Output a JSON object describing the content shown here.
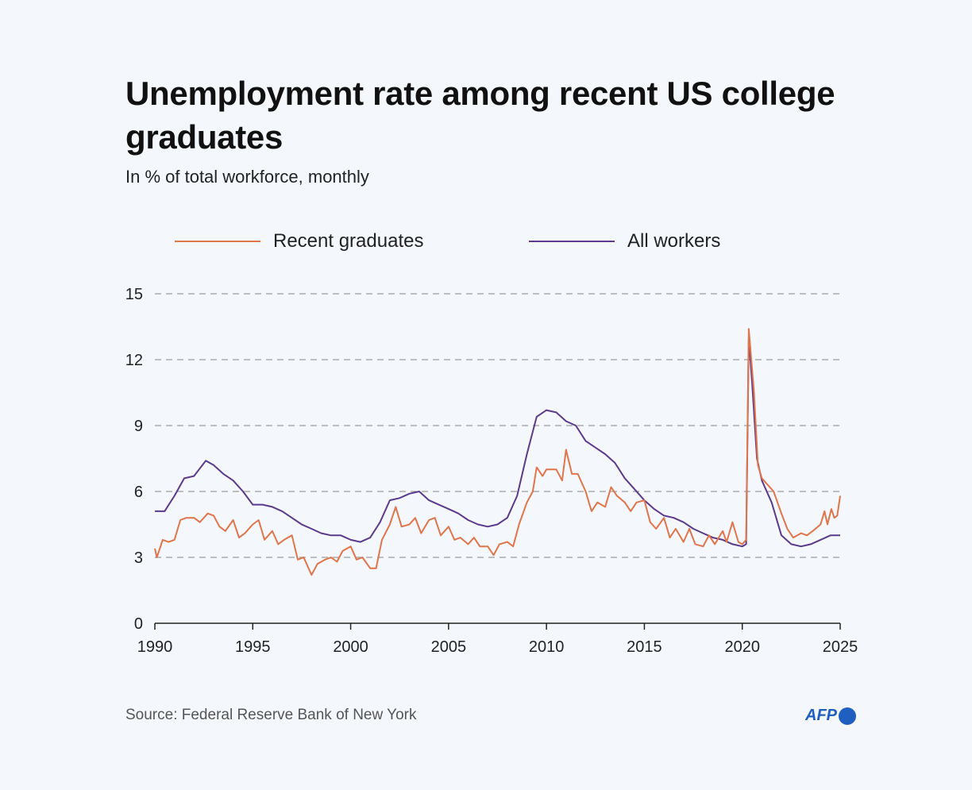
{
  "chart_data": {
    "type": "line",
    "title": "Unemployment rate among recent US college graduates",
    "subtitle": "In % of total workforce, monthly",
    "xlabel": "",
    "ylabel": "",
    "xlim": [
      1990,
      2025
    ],
    "ylim": [
      0,
      15
    ],
    "x_ticks": [
      "1990",
      "1995",
      "2000",
      "2005",
      "2010",
      "2015",
      "2020",
      "2025"
    ],
    "y_ticks": [
      "0",
      "3",
      "6",
      "9",
      "12",
      "15"
    ],
    "grid": "horizontal dashed",
    "legend_placement": "top",
    "series": [
      {
        "name": "Recent graduates",
        "color": "#e0744a",
        "points": [
          [
            1990,
            3.4
          ],
          [
            1990.1,
            3.0
          ],
          [
            1990.4,
            3.8
          ],
          [
            1990.7,
            3.7
          ],
          [
            1991,
            3.8
          ],
          [
            1991.3,
            4.7
          ],
          [
            1991.6,
            4.8
          ],
          [
            1992,
            4.8
          ],
          [
            1992.3,
            4.6
          ],
          [
            1992.7,
            5.0
          ],
          [
            1993,
            4.9
          ],
          [
            1993.3,
            4.4
          ],
          [
            1993.6,
            4.2
          ],
          [
            1994,
            4.7
          ],
          [
            1994.3,
            3.9
          ],
          [
            1994.6,
            4.1
          ],
          [
            1995,
            4.5
          ],
          [
            1995.3,
            4.7
          ],
          [
            1995.6,
            3.8
          ],
          [
            1996,
            4.2
          ],
          [
            1996.3,
            3.6
          ],
          [
            1996.6,
            3.8
          ],
          [
            1997,
            4.0
          ],
          [
            1997.3,
            2.9
          ],
          [
            1997.6,
            3.0
          ],
          [
            1998,
            2.2
          ],
          [
            1998.3,
            2.7
          ],
          [
            1998.7,
            2.9
          ],
          [
            1999,
            3.0
          ],
          [
            1999.3,
            2.8
          ],
          [
            1999.6,
            3.3
          ],
          [
            2000,
            3.5
          ],
          [
            2000.3,
            2.9
          ],
          [
            2000.6,
            3.0
          ],
          [
            2001,
            2.5
          ],
          [
            2001.3,
            2.5
          ],
          [
            2001.6,
            3.8
          ],
          [
            2002,
            4.5
          ],
          [
            2002.3,
            5.3
          ],
          [
            2002.6,
            4.4
          ],
          [
            2003,
            4.5
          ],
          [
            2003.3,
            4.8
          ],
          [
            2003.6,
            4.1
          ],
          [
            2004,
            4.7
          ],
          [
            2004.3,
            4.8
          ],
          [
            2004.6,
            4.0
          ],
          [
            2005,
            4.4
          ],
          [
            2005.3,
            3.8
          ],
          [
            2005.6,
            3.9
          ],
          [
            2006,
            3.6
          ],
          [
            2006.3,
            3.9
          ],
          [
            2006.6,
            3.5
          ],
          [
            2007,
            3.5
          ],
          [
            2007.3,
            3.1
          ],
          [
            2007.6,
            3.6
          ],
          [
            2008,
            3.7
          ],
          [
            2008.3,
            3.5
          ],
          [
            2008.6,
            4.5
          ],
          [
            2009,
            5.5
          ],
          [
            2009.3,
            6.0
          ],
          [
            2009.5,
            7.1
          ],
          [
            2009.8,
            6.7
          ],
          [
            2010,
            7.0
          ],
          [
            2010.5,
            7.0
          ],
          [
            2010.8,
            6.5
          ],
          [
            2011,
            7.9
          ],
          [
            2011.3,
            6.8
          ],
          [
            2011.6,
            6.8
          ],
          [
            2012,
            6.0
          ],
          [
            2012.3,
            5.1
          ],
          [
            2012.6,
            5.5
          ],
          [
            2013,
            5.3
          ],
          [
            2013.3,
            6.2
          ],
          [
            2013.6,
            5.8
          ],
          [
            2014,
            5.5
          ],
          [
            2014.3,
            5.1
          ],
          [
            2014.6,
            5.5
          ],
          [
            2015,
            5.6
          ],
          [
            2015.3,
            4.6
          ],
          [
            2015.6,
            4.3
          ],
          [
            2016,
            4.8
          ],
          [
            2016.3,
            3.9
          ],
          [
            2016.6,
            4.3
          ],
          [
            2017,
            3.7
          ],
          [
            2017.3,
            4.3
          ],
          [
            2017.6,
            3.6
          ],
          [
            2018,
            3.5
          ],
          [
            2018.3,
            4.0
          ],
          [
            2018.6,
            3.6
          ],
          [
            2019,
            4.2
          ],
          [
            2019.2,
            3.7
          ],
          [
            2019.5,
            4.6
          ],
          [
            2019.8,
            3.7
          ],
          [
            2020,
            3.6
          ],
          [
            2020.2,
            3.8
          ],
          [
            2020.33,
            13.4
          ],
          [
            2020.6,
            10.5
          ],
          [
            2020.8,
            7.2
          ],
          [
            2021,
            6.6
          ],
          [
            2021.3,
            6.3
          ],
          [
            2021.6,
            6.0
          ],
          [
            2022,
            5.0
          ],
          [
            2022.3,
            4.3
          ],
          [
            2022.6,
            3.9
          ],
          [
            2023,
            4.1
          ],
          [
            2023.3,
            4.0
          ],
          [
            2023.6,
            4.2
          ],
          [
            2024,
            4.5
          ],
          [
            2024.2,
            5.1
          ],
          [
            2024.35,
            4.5
          ],
          [
            2024.55,
            5.2
          ],
          [
            2024.7,
            4.8
          ],
          [
            2024.85,
            4.9
          ],
          [
            2025,
            5.8
          ]
        ]
      },
      {
        "name": "All workers",
        "color": "#5b3a8c",
        "points": [
          [
            1990,
            5.1
          ],
          [
            1990.5,
            5.1
          ],
          [
            1991,
            5.8
          ],
          [
            1991.5,
            6.6
          ],
          [
            1992,
            6.7
          ],
          [
            1992.6,
            7.4
          ],
          [
            1993,
            7.2
          ],
          [
            1993.5,
            6.8
          ],
          [
            1994,
            6.5
          ],
          [
            1994.5,
            6.0
          ],
          [
            1995,
            5.4
          ],
          [
            1995.5,
            5.4
          ],
          [
            1996,
            5.3
          ],
          [
            1996.5,
            5.1
          ],
          [
            1997,
            4.8
          ],
          [
            1997.5,
            4.5
          ],
          [
            1998,
            4.3
          ],
          [
            1998.5,
            4.1
          ],
          [
            1999,
            4.0
          ],
          [
            1999.5,
            4.0
          ],
          [
            2000,
            3.8
          ],
          [
            2000.5,
            3.7
          ],
          [
            2001,
            3.9
          ],
          [
            2001.5,
            4.6
          ],
          [
            2002,
            5.6
          ],
          [
            2002.5,
            5.7
          ],
          [
            2003,
            5.9
          ],
          [
            2003.5,
            6.0
          ],
          [
            2004,
            5.6
          ],
          [
            2004.5,
            5.4
          ],
          [
            2005,
            5.2
          ],
          [
            2005.5,
            5.0
          ],
          [
            2006,
            4.7
          ],
          [
            2006.5,
            4.5
          ],
          [
            2007,
            4.4
          ],
          [
            2007.5,
            4.5
          ],
          [
            2008,
            4.8
          ],
          [
            2008.5,
            5.8
          ],
          [
            2009,
            7.7
          ],
          [
            2009.5,
            9.4
          ],
          [
            2010,
            9.7
          ],
          [
            2010.5,
            9.6
          ],
          [
            2011,
            9.2
          ],
          [
            2011.5,
            9.0
          ],
          [
            2012,
            8.3
          ],
          [
            2012.5,
            8.0
          ],
          [
            2013,
            7.7
          ],
          [
            2013.5,
            7.3
          ],
          [
            2014,
            6.6
          ],
          [
            2014.5,
            6.1
          ],
          [
            2015,
            5.6
          ],
          [
            2015.5,
            5.2
          ],
          [
            2016,
            4.9
          ],
          [
            2016.5,
            4.8
          ],
          [
            2017,
            4.6
          ],
          [
            2017.5,
            4.3
          ],
          [
            2018,
            4.1
          ],
          [
            2018.5,
            3.9
          ],
          [
            2019,
            3.8
          ],
          [
            2019.5,
            3.6
          ],
          [
            2020,
            3.5
          ],
          [
            2020.2,
            3.6
          ],
          [
            2020.33,
            13.0
          ],
          [
            2020.5,
            11.0
          ],
          [
            2020.75,
            7.5
          ],
          [
            2021,
            6.5
          ],
          [
            2021.5,
            5.5
          ],
          [
            2022,
            4.0
          ],
          [
            2022.5,
            3.6
          ],
          [
            2023,
            3.5
          ],
          [
            2023.5,
            3.6
          ],
          [
            2024,
            3.8
          ],
          [
            2024.5,
            4.0
          ],
          [
            2025,
            4.0
          ]
        ]
      }
    ]
  },
  "source": "Source: Federal Reserve Bank of New York",
  "logo_text": "AFP"
}
